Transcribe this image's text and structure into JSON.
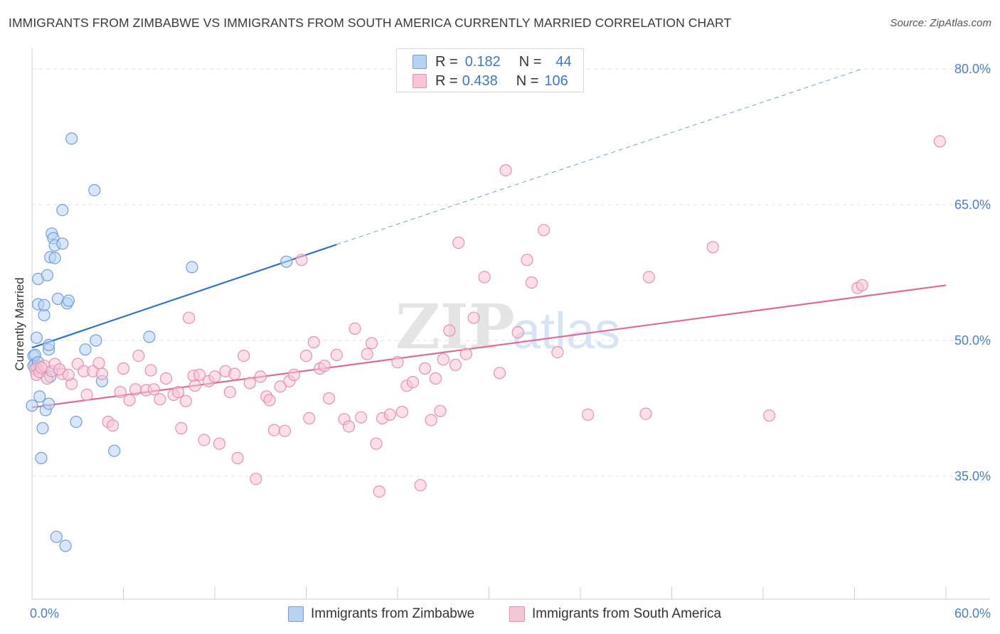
{
  "header": {
    "title": "IMMIGRANTS FROM ZIMBABWE VS IMMIGRANTS FROM SOUTH AMERICA CURRENTLY MARRIED CORRELATION CHART",
    "source": "Source: ZipAtlas.com"
  },
  "legend": {
    "series1": {
      "r_label": "R =",
      "r_value": "0.182",
      "n_label": "N =",
      "n_value": "44"
    },
    "series2": {
      "r_label": "R =",
      "r_value": "0.438",
      "n_label": "N =",
      "n_value": "106"
    }
  },
  "bottom_legend": {
    "series1_label": "Immigrants from Zimbabwe",
    "series2_label": "Immigrants from South America"
  },
  "colors": {
    "blue_fill": "#b8d2f2",
    "blue_stroke": "#6f9fdc",
    "blue_line": "#2e73cc",
    "pink_fill": "#f7c6d6",
    "pink_stroke": "#e98faf",
    "pink_line": "#e0689a",
    "tick_text": "#4a7fcf",
    "grid": "#e2e2e2"
  },
  "chart_data": {
    "type": "scatter",
    "title": "IMMIGRANTS FROM ZIMBABWE VS IMMIGRANTS FROM SOUTH AMERICA CURRENTLY MARRIED CORRELATION CHART",
    "xlabel": "",
    "ylabel": "Currently Married",
    "xlim": [
      0,
      60
    ],
    "ylim": [
      20,
      82.5
    ],
    "x_tick_labels": [
      "0.0%",
      "60.0%"
    ],
    "y_ticks": [
      35,
      50,
      65,
      80
    ],
    "y_tick_labels": [
      "35.0%",
      "50.0%",
      "65.0%",
      "80.0%"
    ],
    "watermark": "ZIPatlas",
    "series": [
      {
        "name": "Immigrants from Zimbabwe",
        "color": "blue",
        "trend": {
          "x0": 0,
          "y0": 49.2,
          "x1": 20,
          "y1": 60.6,
          "dashed_to_x": 54.5,
          "dashed_to_y": 80.0
        },
        "points": [
          [
            0.0,
            42.8
          ],
          [
            0.1,
            48.3
          ],
          [
            0.2,
            47.4
          ],
          [
            0.3,
            50.3
          ],
          [
            0.4,
            54.0
          ],
          [
            0.4,
            56.8
          ],
          [
            0.5,
            43.8
          ],
          [
            0.6,
            37.0
          ],
          [
            0.7,
            40.3
          ],
          [
            0.8,
            52.8
          ],
          [
            0.8,
            53.9
          ],
          [
            0.9,
            42.3
          ],
          [
            1.0,
            57.2
          ],
          [
            1.1,
            49.0
          ],
          [
            1.1,
            49.5
          ],
          [
            1.1,
            43.0
          ],
          [
            1.2,
            59.2
          ],
          [
            1.2,
            46.0
          ],
          [
            1.3,
            61.8
          ],
          [
            1.4,
            61.3
          ],
          [
            1.5,
            60.5
          ],
          [
            1.5,
            59.1
          ],
          [
            1.6,
            28.3
          ],
          [
            1.7,
            54.6
          ],
          [
            2.0,
            64.4
          ],
          [
            2.0,
            60.7
          ],
          [
            2.2,
            27.3
          ],
          [
            2.3,
            54.1
          ],
          [
            2.4,
            54.4
          ],
          [
            2.6,
            72.3
          ],
          [
            2.9,
            41.0
          ],
          [
            3.5,
            49.0
          ],
          [
            4.1,
            66.6
          ],
          [
            4.2,
            50.0
          ],
          [
            4.6,
            45.5
          ],
          [
            5.4,
            37.8
          ],
          [
            7.7,
            50.4
          ],
          [
            10.5,
            58.1
          ],
          [
            16.7,
            58.7
          ],
          [
            0.1,
            47.2
          ],
          [
            0.2,
            48.4
          ],
          [
            0.3,
            47.0
          ],
          [
            0.4,
            47.6
          ],
          [
            0.5,
            46.5
          ]
        ]
      },
      {
        "name": "Immigrants from South America",
        "color": "pink",
        "trend": {
          "x0": 0,
          "y0": 42.6,
          "x1": 60,
          "y1": 56.1
        },
        "points": [
          [
            0.2,
            46.8
          ],
          [
            0.3,
            46.2
          ],
          [
            0.5,
            46.5
          ],
          [
            0.8,
            47.2
          ],
          [
            1.0,
            45.8
          ],
          [
            1.3,
            46.6
          ],
          [
            1.5,
            47.4
          ],
          [
            2.0,
            46.3
          ],
          [
            2.6,
            45.2
          ],
          [
            3.0,
            47.4
          ],
          [
            3.4,
            46.6
          ],
          [
            3.6,
            44.0
          ],
          [
            4.0,
            46.6
          ],
          [
            4.4,
            47.5
          ],
          [
            4.6,
            46.3
          ],
          [
            5.0,
            41.0
          ],
          [
            5.3,
            40.6
          ],
          [
            5.8,
            44.3
          ],
          [
            6.0,
            46.9
          ],
          [
            6.4,
            43.4
          ],
          [
            6.8,
            44.6
          ],
          [
            7.0,
            48.3
          ],
          [
            7.5,
            44.5
          ],
          [
            7.8,
            46.7
          ],
          [
            8.0,
            44.6
          ],
          [
            8.4,
            43.5
          ],
          [
            8.8,
            45.8
          ],
          [
            9.3,
            44.0
          ],
          [
            9.6,
            44.3
          ],
          [
            9.8,
            40.3
          ],
          [
            10.1,
            43.3
          ],
          [
            10.3,
            52.5
          ],
          [
            10.6,
            46.1
          ],
          [
            10.7,
            45.0
          ],
          [
            11.0,
            46.2
          ],
          [
            11.3,
            39.0
          ],
          [
            11.6,
            45.5
          ],
          [
            12.0,
            46.0
          ],
          [
            12.3,
            38.6
          ],
          [
            12.7,
            46.6
          ],
          [
            13.0,
            44.3
          ],
          [
            13.3,
            46.3
          ],
          [
            13.5,
            37.0
          ],
          [
            13.9,
            48.3
          ],
          [
            14.3,
            45.3
          ],
          [
            14.7,
            34.7
          ],
          [
            15.0,
            46.0
          ],
          [
            15.4,
            43.8
          ],
          [
            15.6,
            43.4
          ],
          [
            15.9,
            40.1
          ],
          [
            16.3,
            44.9
          ],
          [
            16.6,
            40.0
          ],
          [
            16.9,
            45.5
          ],
          [
            17.2,
            46.2
          ],
          [
            17.7,
            58.9
          ],
          [
            18.0,
            48.3
          ],
          [
            18.2,
            41.4
          ],
          [
            18.5,
            49.8
          ],
          [
            18.9,
            46.9
          ],
          [
            19.2,
            47.2
          ],
          [
            19.5,
            43.6
          ],
          [
            20.0,
            48.4
          ],
          [
            20.5,
            41.3
          ],
          [
            20.8,
            40.5
          ],
          [
            21.2,
            51.3
          ],
          [
            21.6,
            41.5
          ],
          [
            22.0,
            48.5
          ],
          [
            22.3,
            49.7
          ],
          [
            22.6,
            38.6
          ],
          [
            22.8,
            33.3
          ],
          [
            23.0,
            41.4
          ],
          [
            23.5,
            41.8
          ],
          [
            24.0,
            47.6
          ],
          [
            24.3,
            42.1
          ],
          [
            24.6,
            45.0
          ],
          [
            25.0,
            45.4
          ],
          [
            25.5,
            34.0
          ],
          [
            25.8,
            46.9
          ],
          [
            26.2,
            41.2
          ],
          [
            26.5,
            45.8
          ],
          [
            26.8,
            42.2
          ],
          [
            27.0,
            47.9
          ],
          [
            27.4,
            51.1
          ],
          [
            27.8,
            47.3
          ],
          [
            28.0,
            60.8
          ],
          [
            28.5,
            48.5
          ],
          [
            29.0,
            52.5
          ],
          [
            29.7,
            57.0
          ],
          [
            30.7,
            46.4
          ],
          [
            31.1,
            68.8
          ],
          [
            31.9,
            50.9
          ],
          [
            32.5,
            58.9
          ],
          [
            32.8,
            56.4
          ],
          [
            33.6,
            62.2
          ],
          [
            34.5,
            48.7
          ],
          [
            36.5,
            41.8
          ],
          [
            40.3,
            41.9
          ],
          [
            40.5,
            57.0
          ],
          [
            44.7,
            60.3
          ],
          [
            48.4,
            41.7
          ],
          [
            54.2,
            55.8
          ],
          [
            54.5,
            56.1
          ],
          [
            59.6,
            72.0
          ],
          [
            0.6,
            47.0
          ],
          [
            1.8,
            46.8
          ],
          [
            2.4,
            46.2
          ]
        ]
      }
    ]
  }
}
